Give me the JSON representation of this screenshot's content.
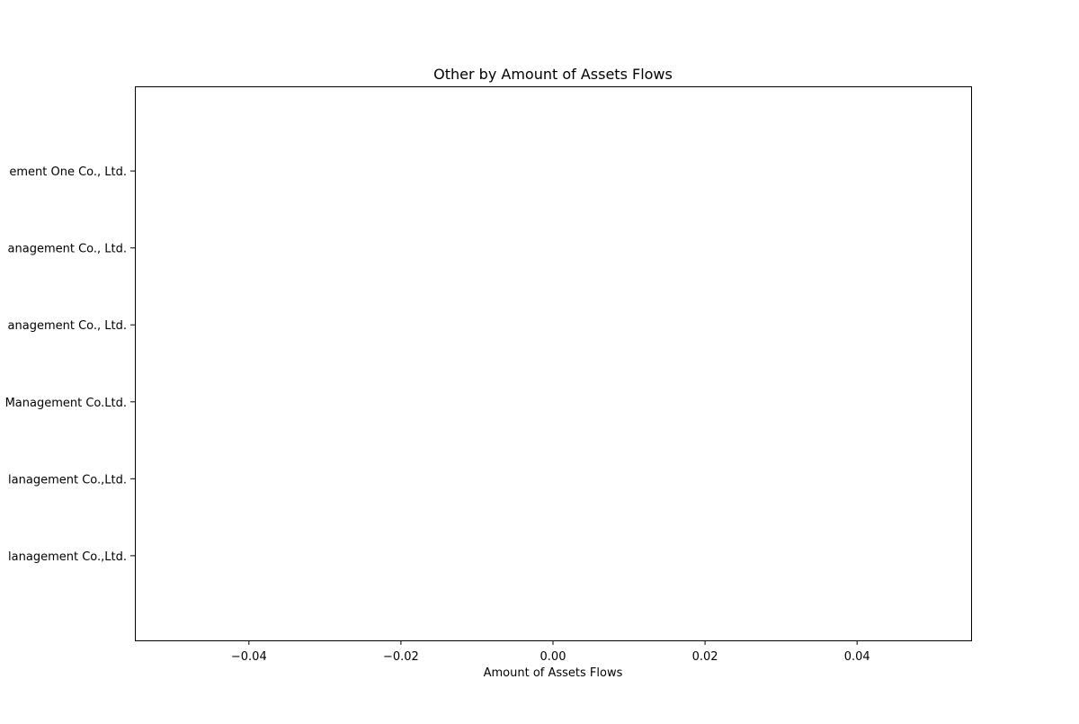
{
  "chart_data": {
    "type": "bar",
    "orientation": "horizontal",
    "title": "Other by Amount of Assets Flows",
    "xlabel": "Amount of Assets Flows",
    "ylabel": "",
    "categories": [
      "lanagement Co.,Ltd.",
      "lanagement Co.,Ltd.",
      "Management Co.Ltd.",
      "anagement Co., Ltd.",
      "anagement Co., Ltd.",
      "ement One Co., Ltd."
    ],
    "values": [
      0,
      0,
      0,
      0,
      0,
      0
    ],
    "xlim": [
      -0.055,
      0.055
    ],
    "xticks": [
      -0.04,
      -0.02,
      0.0,
      0.02,
      0.04
    ],
    "xtick_labels": [
      "−0.04",
      "−0.02",
      "0.00",
      "0.02",
      "0.04"
    ],
    "grid": false,
    "legend": "none"
  }
}
